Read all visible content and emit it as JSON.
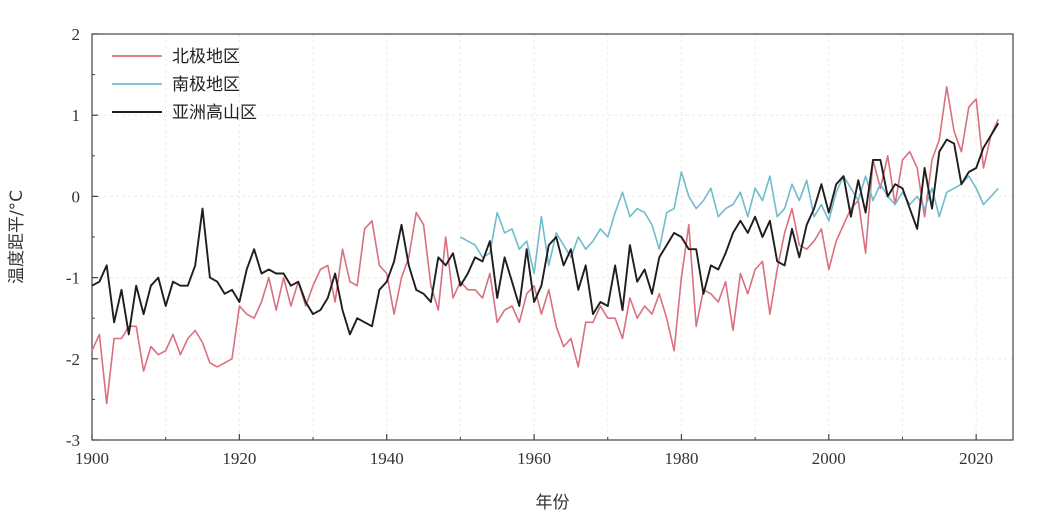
{
  "chart_data": {
    "type": "line",
    "xlabel": "年份",
    "ylabel": "温度距平/°C",
    "xlim": [
      1900,
      2025
    ],
    "ylim": [
      -3,
      2
    ],
    "xticks": [
      1900,
      1920,
      1940,
      1960,
      1980,
      2000,
      2020
    ],
    "yticks": [
      2,
      1,
      0,
      -1,
      -2,
      -3
    ],
    "grid": true,
    "legend_position": "top-left",
    "series": [
      {
        "name": "北极地区",
        "color": "#d9707f",
        "x": [
          1900,
          1901,
          1902,
          1903,
          1904,
          1905,
          1906,
          1907,
          1908,
          1909,
          1910,
          1911,
          1912,
          1913,
          1914,
          1915,
          1916,
          1917,
          1918,
          1919,
          1920,
          1921,
          1922,
          1923,
          1924,
          1925,
          1926,
          1927,
          1928,
          1929,
          1930,
          1931,
          1932,
          1933,
          1934,
          1935,
          1936,
          1937,
          1938,
          1939,
          1940,
          1941,
          1942,
          1943,
          1944,
          1945,
          1946,
          1947,
          1948,
          1949,
          1950,
          1951,
          1952,
          1953,
          1954,
          1955,
          1956,
          1957,
          1958,
          1959,
          1960,
          1961,
          1962,
          1963,
          1964,
          1965,
          1966,
          1967,
          1968,
          1969,
          1970,
          1971,
          1972,
          1973,
          1974,
          1975,
          1976,
          1977,
          1978,
          1979,
          1980,
          1981,
          1982,
          1983,
          1984,
          1985,
          1986,
          1987,
          1988,
          1989,
          1990,
          1991,
          1992,
          1993,
          1994,
          1995,
          1996,
          1997,
          1998,
          1999,
          2000,
          2001,
          2002,
          2003,
          2004,
          2005,
          2006,
          2007,
          2008,
          2009,
          2010,
          2011,
          2012,
          2013,
          2014,
          2015,
          2016,
          2017,
          2018,
          2019,
          2020,
          2021,
          2022,
          2023
        ],
        "y": [
          -1.9,
          -1.7,
          -2.55,
          -1.75,
          -1.75,
          -1.6,
          -1.6,
          -2.15,
          -1.85,
          -1.95,
          -1.9,
          -1.7,
          -1.95,
          -1.75,
          -1.65,
          -1.8,
          -2.05,
          -2.1,
          -2.05,
          -2.0,
          -1.35,
          -1.45,
          -1.5,
          -1.3,
          -1.0,
          -1.4,
          -1.0,
          -1.35,
          -1.05,
          -1.35,
          -1.1,
          -0.9,
          -0.85,
          -1.3,
          -0.65,
          -1.05,
          -1.1,
          -0.4,
          -0.3,
          -0.85,
          -0.95,
          -1.45,
          -1.0,
          -0.75,
          -0.2,
          -0.35,
          -1.1,
          -1.4,
          -0.5,
          -1.25,
          -1.05,
          -1.15,
          -1.15,
          -1.25,
          -0.95,
          -1.55,
          -1.4,
          -1.35,
          -1.55,
          -1.2,
          -1.1,
          -1.45,
          -1.15,
          -1.6,
          -1.85,
          -1.75,
          -2.1,
          -1.55,
          -1.55,
          -1.35,
          -1.5,
          -1.5,
          -1.75,
          -1.25,
          -1.5,
          -1.35,
          -1.45,
          -1.2,
          -1.5,
          -1.9,
          -1.0,
          -0.35,
          -1.6,
          -1.15,
          -1.2,
          -1.3,
          -1.05,
          -1.65,
          -0.95,
          -1.2,
          -0.9,
          -0.8,
          -1.45,
          -0.9,
          -0.45,
          -0.15,
          -0.6,
          -0.65,
          -0.55,
          -0.4,
          -0.9,
          -0.55,
          -0.35,
          -0.15,
          -0.05,
          -0.7,
          0.45,
          0.1,
          0.5,
          -0.1,
          0.45,
          0.55,
          0.35,
          -0.25,
          0.45,
          0.7,
          1.35,
          0.8,
          0.55,
          1.1,
          1.2,
          0.35,
          0.75,
          0.95
        ]
      },
      {
        "name": "南极地区",
        "color": "#6fbccb",
        "x": [
          1950,
          1951,
          1952,
          1953,
          1954,
          1955,
          1956,
          1957,
          1958,
          1959,
          1960,
          1961,
          1962,
          1963,
          1964,
          1965,
          1966,
          1967,
          1968,
          1969,
          1970,
          1971,
          1972,
          1973,
          1974,
          1975,
          1976,
          1977,
          1978,
          1979,
          1980,
          1981,
          1982,
          1983,
          1984,
          1985,
          1986,
          1987,
          1988,
          1989,
          1990,
          1991,
          1992,
          1993,
          1994,
          1995,
          1996,
          1997,
          1998,
          1999,
          2000,
          2001,
          2002,
          2003,
          2004,
          2005,
          2006,
          2007,
          2008,
          2009,
          2010,
          2011,
          2012,
          2013,
          2014,
          2015,
          2016,
          2017,
          2018,
          2019,
          2020,
          2021,
          2022,
          2023
        ],
        "y": [
          -0.5,
          -0.55,
          -0.6,
          -0.75,
          -0.7,
          -0.2,
          -0.45,
          -0.4,
          -0.65,
          -0.55,
          -0.95,
          -0.25,
          -0.85,
          -0.45,
          -0.6,
          -0.75,
          -0.5,
          -0.65,
          -0.55,
          -0.4,
          -0.5,
          -0.2,
          0.05,
          -0.25,
          -0.15,
          -0.2,
          -0.35,
          -0.65,
          -0.2,
          -0.15,
          0.3,
          0.0,
          -0.15,
          -0.05,
          0.1,
          -0.25,
          -0.15,
          -0.1,
          0.05,
          -0.25,
          0.1,
          -0.05,
          0.25,
          -0.25,
          -0.15,
          0.15,
          -0.05,
          0.2,
          -0.25,
          -0.1,
          -0.3,
          0.05,
          0.25,
          0.1,
          -0.05,
          0.25,
          -0.05,
          0.15,
          0.0,
          -0.1,
          0.05,
          -0.1,
          0.0,
          -0.15,
          0.1,
          -0.25,
          0.05,
          0.1,
          0.15,
          0.25,
          0.1,
          -0.1,
          0.0,
          0.1
        ]
      },
      {
        "name": "亚洲高山区",
        "color": "#1e1e1e",
        "x": [
          1900,
          1901,
          1902,
          1903,
          1904,
          1905,
          1906,
          1907,
          1908,
          1909,
          1910,
          1911,
          1912,
          1913,
          1914,
          1915,
          1916,
          1917,
          1918,
          1919,
          1920,
          1921,
          1922,
          1923,
          1924,
          1925,
          1926,
          1927,
          1928,
          1929,
          1930,
          1931,
          1932,
          1933,
          1934,
          1935,
          1936,
          1937,
          1938,
          1939,
          1940,
          1941,
          1942,
          1943,
          1944,
          1945,
          1946,
          1947,
          1948,
          1949,
          1950,
          1951,
          1952,
          1953,
          1954,
          1955,
          1956,
          1957,
          1958,
          1959,
          1960,
          1961,
          1962,
          1963,
          1964,
          1965,
          1966,
          1967,
          1968,
          1969,
          1970,
          1971,
          1972,
          1973,
          1974,
          1975,
          1976,
          1977,
          1978,
          1979,
          1980,
          1981,
          1982,
          1983,
          1984,
          1985,
          1986,
          1987,
          1988,
          1989,
          1990,
          1991,
          1992,
          1993,
          1994,
          1995,
          1996,
          1997,
          1998,
          1999,
          2000,
          2001,
          2002,
          2003,
          2004,
          2005,
          2006,
          2007,
          2008,
          2009,
          2010,
          2011,
          2012,
          2013,
          2014,
          2015,
          2016,
          2017,
          2018,
          2019,
          2020,
          2021,
          2022,
          2023
        ],
        "y": [
          -1.1,
          -1.05,
          -0.85,
          -1.55,
          -1.15,
          -1.7,
          -1.1,
          -1.45,
          -1.1,
          -1.0,
          -1.35,
          -1.05,
          -1.1,
          -1.1,
          -0.85,
          -0.15,
          -1.0,
          -1.05,
          -1.2,
          -1.15,
          -1.3,
          -0.9,
          -0.65,
          -0.95,
          -0.9,
          -0.95,
          -0.95,
          -1.1,
          -1.05,
          -1.3,
          -1.45,
          -1.4,
          -1.25,
          -0.95,
          -1.4,
          -1.7,
          -1.5,
          -1.55,
          -1.6,
          -1.15,
          -1.05,
          -0.8,
          -0.35,
          -0.85,
          -1.15,
          -1.2,
          -1.3,
          -0.75,
          -0.85,
          -0.7,
          -1.1,
          -0.95,
          -0.75,
          -0.8,
          -0.55,
          -1.25,
          -0.75,
          -1.05,
          -1.35,
          -0.65,
          -1.3,
          -1.1,
          -0.6,
          -0.5,
          -0.85,
          -0.65,
          -1.15,
          -0.85,
          -1.45,
          -1.3,
          -1.35,
          -0.85,
          -1.4,
          -0.6,
          -1.05,
          -0.9,
          -1.2,
          -0.75,
          -0.6,
          -0.45,
          -0.5,
          -0.65,
          -0.65,
          -1.2,
          -0.85,
          -0.9,
          -0.7,
          -0.45,
          -0.3,
          -0.45,
          -0.25,
          -0.5,
          -0.3,
          -0.8,
          -0.85,
          -0.4,
          -0.75,
          -0.35,
          -0.15,
          0.15,
          -0.2,
          0.15,
          0.25,
          -0.25,
          0.2,
          -0.2,
          0.45,
          0.45,
          0.0,
          0.15,
          0.1,
          -0.15,
          -0.4,
          0.35,
          -0.15,
          0.55,
          0.7,
          0.65,
          0.15,
          0.3,
          0.35,
          0.6,
          0.75,
          0.9
        ]
      }
    ]
  }
}
